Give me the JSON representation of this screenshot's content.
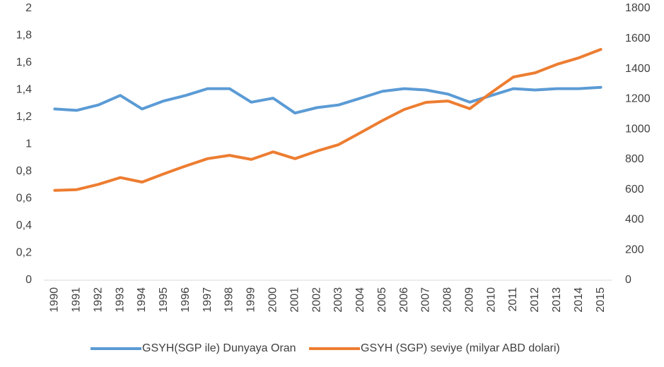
{
  "chart_data": {
    "type": "line",
    "categories": [
      "1990",
      "1991",
      "1992",
      "1993",
      "1994",
      "1995",
      "1996",
      "1997",
      "1998",
      "1999",
      "2000",
      "2001",
      "2002",
      "2003",
      "2004",
      "2005",
      "2006",
      "2007",
      "2008",
      "2009",
      "2010",
      "2011",
      "2012",
      "2013",
      "2014",
      "2015"
    ],
    "series": [
      {
        "name": "GSYH(SGP ile) Dunyaya Oran",
        "color": "#5b9bd5",
        "values": [
          1.26,
          1.25,
          1.29,
          1.36,
          1.26,
          1.32,
          1.36,
          1.41,
          1.41,
          1.31,
          1.34,
          1.23,
          1.27,
          1.29,
          1.34,
          1.39,
          1.41,
          1.4,
          1.37,
          1.31,
          1.36,
          1.41,
          1.4,
          1.41,
          1.41,
          1.42
        ]
      },
      {
        "name": "GSYH (SGP) seviye (milyar ABD dolari)",
        "color": "#ed7d31",
        "axis": "y2",
        "values": [
          595,
          600,
          635,
          680,
          650,
          705,
          757,
          805,
          827,
          800,
          850,
          805,
          855,
          898,
          977,
          1057,
          1131,
          1178,
          1187,
          1136,
          1244,
          1346,
          1374,
          1430,
          1473,
          1529
        ]
      }
    ],
    "ylim": [
      0,
      2
    ],
    "yticks": [
      0,
      {
        "value": 0.2,
        "label": "0,2"
      },
      {
        "value": 0.4,
        "label": "0,4"
      },
      {
        "value": 0.6,
        "label": "0,6"
      },
      {
        "value": 0.8,
        "label": "0,8"
      },
      1,
      {
        "value": 1.2,
        "label": "1,2"
      },
      {
        "value": 1.4,
        "label": "1,4"
      },
      {
        "value": 1.6,
        "label": "1,6"
      },
      {
        "value": 1.8,
        "label": "1,8"
      },
      2
    ],
    "y2lim": [
      0,
      1800
    ],
    "y2ticks": [
      0,
      200,
      400,
      600,
      800,
      1000,
      1200,
      1400,
      1600,
      1800
    ],
    "grid": false,
    "legend": "bottom"
  }
}
